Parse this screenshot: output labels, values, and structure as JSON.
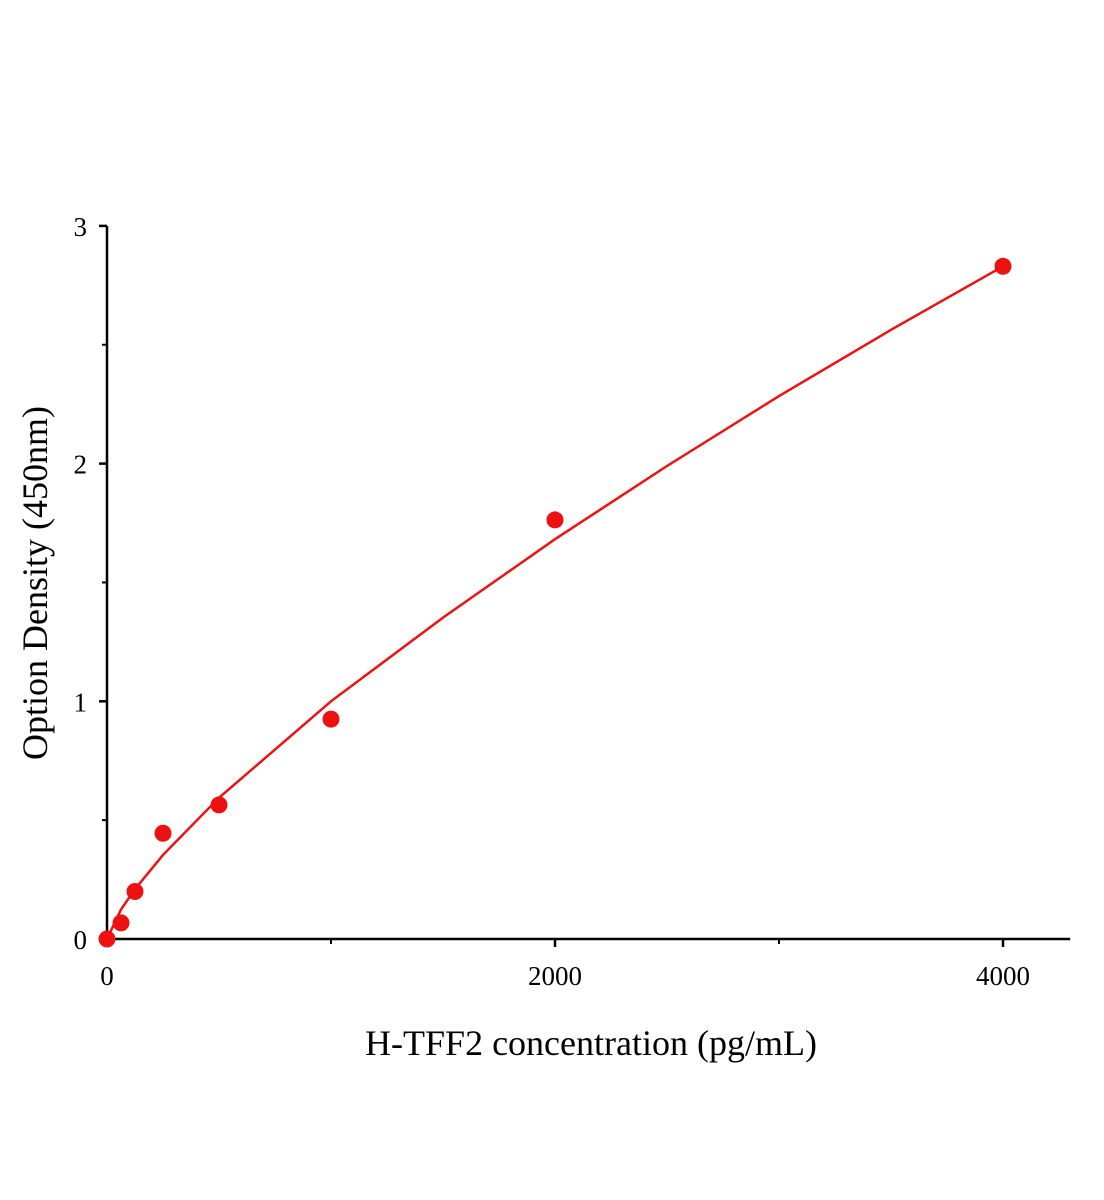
{
  "chart_data": {
    "type": "scatter",
    "title": "",
    "xlabel": "H-TFF2 concentration (pg/mL)",
    "ylabel": "Option Density (450nm)",
    "xlim": [
      0,
      4300
    ],
    "ylim": [
      0,
      3
    ],
    "x_ticks": [
      0,
      2000,
      4000
    ],
    "x_tick_labels": [
      "0",
      "2000",
      "4000"
    ],
    "x_minor_ticks": [
      1000,
      3000
    ],
    "y_ticks": [
      0,
      1,
      2,
      3
    ],
    "y_tick_labels": [
      "0",
      "1",
      "2",
      "3"
    ],
    "y_minor_ticks": [
      0.5,
      1.5,
      2.5
    ],
    "grid": false,
    "color": "#ee1111",
    "points": {
      "x": [
        0,
        62.5,
        125,
        250,
        500,
        1000,
        2000,
        4000
      ],
      "y": [
        0.0,
        0.068,
        0.2,
        0.445,
        0.564,
        0.925,
        1.763,
        2.83
      ]
    },
    "fit_curve": {
      "x": [
        0,
        62.5,
        125,
        250,
        500,
        1000,
        1500,
        2000,
        2500,
        3000,
        3500,
        4000
      ],
      "y": [
        0,
        0.124,
        0.21,
        0.354,
        0.594,
        1.0,
        1.352,
        1.682,
        1.99,
        2.284,
        2.563,
        2.83
      ]
    }
  }
}
